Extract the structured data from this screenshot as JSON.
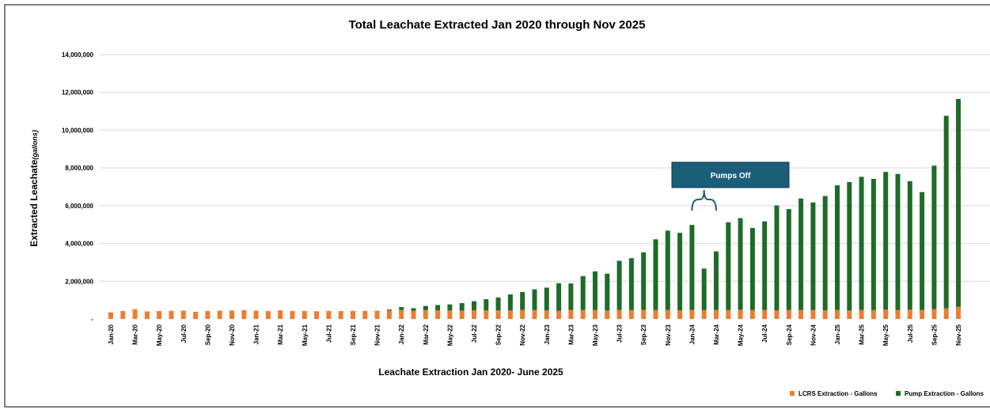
{
  "chart_data": {
    "type": "bar",
    "stacked": true,
    "title": "Total Leachate Extracted Jan 2020 through Nov 2025",
    "xlabel": "Leachate Extraction Jan 2020- June 2025",
    "ylabel_main": "Extracted Leachate",
    "ylabel_unit": "(gallons)",
    "ylim": [
      0,
      14000000
    ],
    "yticks": [
      0,
      2000000,
      4000000,
      6000000,
      8000000,
      10000000,
      12000000,
      14000000
    ],
    "ytick_labels": [
      "-",
      "2,000,000",
      "4,000,000",
      "6,000,000",
      "8,000,000",
      "10,000,000",
      "12,000,000",
      "14,000,000"
    ],
    "grid": true,
    "legend_position": "bottom-right",
    "categories": [
      "Jan-20",
      "Feb-20",
      "Mar-20",
      "Apr-20",
      "May-20",
      "Jun-20",
      "Jul-20",
      "Aug-20",
      "Sep-20",
      "Oct-20",
      "Nov-20",
      "Dec-20",
      "Jan-21",
      "Feb-21",
      "Mar-21",
      "Apr-21",
      "May-21",
      "Jun-21",
      "Jul-21",
      "Aug-21",
      "Sep-21",
      "Oct-21",
      "Nov-21",
      "Dec-21",
      "Jan-22",
      "Feb-22",
      "Mar-22",
      "Apr-22",
      "May-22",
      "Jun-22",
      "Jul-22",
      "Aug-22",
      "Sep-22",
      "Oct-22",
      "Nov-22",
      "Dec-22",
      "Jan-23",
      "Feb-23",
      "Mar-23",
      "Apr-23",
      "May-23",
      "Jun-23",
      "Jul-23",
      "Aug-23",
      "Sep-23",
      "Oct-23",
      "Nov-23",
      "Dec-23",
      "Jan-24",
      "Feb-24",
      "Mar-24",
      "Apr-24",
      "May-24",
      "Jun-24",
      "Jul-24",
      "Aug-24",
      "Sep-24",
      "Oct-24",
      "Nov-24",
      "Dec-24",
      "Jan-25",
      "Feb-25",
      "Mar-25",
      "Apr-25",
      "May-25",
      "Jun-25",
      "Jul-25",
      "Aug-25",
      "Sep-25",
      "Oct-25",
      "Nov-25"
    ],
    "xtick_labels": [
      "Jan-20",
      "Mar-20",
      "May-20",
      "Jul-20",
      "Sep-20",
      "Nov-20",
      "Jan-21",
      "Mar-21",
      "May-21",
      "Jul-21",
      "Sep-21",
      "Nov-21",
      "Jan-22",
      "Mar-22",
      "May-22",
      "Jul-22",
      "Sep-22",
      "Nov-22",
      "Jan-23",
      "Mar-23",
      "May-23",
      "Jul-23",
      "Sep-23",
      "Nov-23",
      "Jan-24",
      "Mar-24",
      "May-24",
      "Jul-24",
      "Sep-24",
      "Nov-24",
      "Jan-25",
      "Mar-25",
      "May-25",
      "Jul-25",
      "Sep-25",
      "Nov-25"
    ],
    "series": [
      {
        "name": "LCRS Extraction - Gallons",
        "color": "#ED7D31",
        "values": [
          350000,
          420000,
          520000,
          400000,
          420000,
          430000,
          440000,
          380000,
          420000,
          440000,
          450000,
          470000,
          440000,
          420000,
          460000,
          420000,
          420000,
          410000,
          430000,
          420000,
          430000,
          430000,
          440000,
          450000,
          480000,
          440000,
          470000,
          460000,
          450000,
          440000,
          460000,
          450000,
          460000,
          450000,
          480000,
          470000,
          460000,
          440000,
          480000,
          470000,
          470000,
          450000,
          480000,
          470000,
          480000,
          470000,
          480000,
          460000,
          480000,
          470000,
          480000,
          470000,
          490000,
          470000,
          470000,
          460000,
          470000,
          480000,
          470000,
          460000,
          480000,
          450000,
          480000,
          470000,
          490000,
          480000,
          500000,
          470000,
          520000,
          560000,
          650000
        ]
      },
      {
        "name": "Pump Extraction - Gallons",
        "color": "#1E6B2A",
        "values": [
          0,
          0,
          0,
          0,
          0,
          0,
          0,
          0,
          0,
          0,
          0,
          0,
          0,
          0,
          0,
          0,
          0,
          0,
          0,
          0,
          0,
          0,
          0,
          50000,
          150000,
          130000,
          220000,
          280000,
          320000,
          400000,
          480000,
          600000,
          680000,
          850000,
          950000,
          1100000,
          1200000,
          1450000,
          1400000,
          1800000,
          2050000,
          1950000,
          2600000,
          2750000,
          3050000,
          3750000,
          4200000,
          4100000,
          4500000,
          2200000,
          3100000,
          4650000,
          4850000,
          4350000,
          4700000,
          5550000,
          5350000,
          5900000,
          5700000,
          6050000,
          6600000,
          6800000,
          7050000,
          6950000,
          7300000,
          7200000,
          6800000,
          6250000,
          7600000,
          10200000,
          11000000
        ]
      }
    ],
    "annotation": {
      "text": "Pumps Off",
      "fill": "#1B5E7A",
      "category": "Feb-24",
      "bracket_from": "Jan-24",
      "bracket_to": "Mar-24"
    }
  }
}
